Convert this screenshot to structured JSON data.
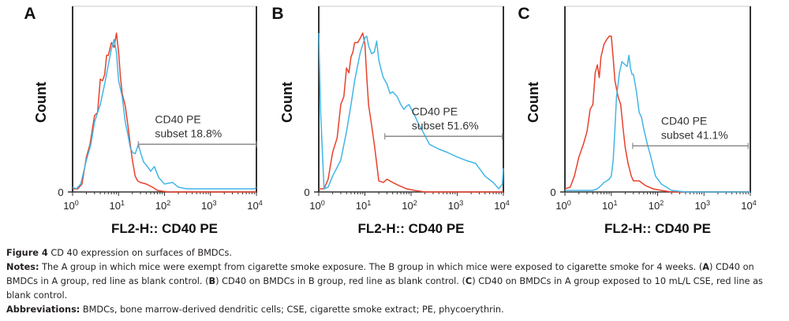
{
  "chart_data": [
    {
      "type": "line",
      "panel": "A",
      "title": "",
      "xlabel": "FL2-H:: CD40 PE",
      "ylabel": "Count",
      "xscale": "log",
      "xlim": [
        1,
        10000
      ],
      "ylim": [
        0,
        1
      ],
      "y_tick_labels": [
        "0"
      ],
      "x_tick_labels": [
        {
          "base": "10",
          "exp": "0"
        },
        {
          "base": "10",
          "exp": "1"
        },
        {
          "base": "10",
          "exp": "2"
        },
        {
          "base": "10",
          "exp": "3"
        },
        {
          "base": "10",
          "exp": "4"
        }
      ],
      "grid": false,
      "gate": {
        "label_line1": "CD40 PE",
        "label_line2": "subset 18.8%",
        "x_start": 27,
        "x_end": 10000,
        "y_level": 0.3
      },
      "series": [
        {
          "name": "blank control",
          "color": "#e8412c",
          "x": [
            1,
            1.3,
            1.6,
            2,
            2.4,
            3,
            3.5,
            4,
            4.5,
            5,
            5.5,
            6,
            7,
            8,
            9,
            10,
            11,
            12,
            14,
            16,
            18,
            20,
            23,
            26,
            30,
            40,
            55,
            70,
            90,
            120,
            200,
            10000
          ],
          "y": [
            0.02,
            0.02,
            0.05,
            0.22,
            0.3,
            0.48,
            0.5,
            0.71,
            0.7,
            0.74,
            0.86,
            0.86,
            0.94,
            0.91,
            1.0,
            0.88,
            0.72,
            0.62,
            0.54,
            0.42,
            0.3,
            0.2,
            0.1,
            0.07,
            0.06,
            0.05,
            0.03,
            0.01,
            0.005,
            0.0,
            0.0,
            0.0
          ]
        },
        {
          "name": "CD40 PE",
          "color": "#41b6e6",
          "x": [
            1,
            1.2,
            1.5,
            2,
            2.5,
            3,
            4,
            5,
            6,
            7,
            8,
            9,
            10,
            12,
            14,
            16,
            18,
            20,
            23,
            25,
            27,
            30,
            35,
            40,
            50,
            60,
            75,
            100,
            150,
            200,
            300,
            500,
            800,
            1000,
            2000,
            5000,
            9000,
            10000
          ],
          "y": [
            0.03,
            0.02,
            0.05,
            0.2,
            0.3,
            0.44,
            0.55,
            0.68,
            0.8,
            0.9,
            0.96,
            0.88,
            0.7,
            0.6,
            0.44,
            0.36,
            0.28,
            0.25,
            0.24,
            0.27,
            0.3,
            0.25,
            0.19,
            0.17,
            0.13,
            0.16,
            0.09,
            0.05,
            0.06,
            0.03,
            0.02,
            0.02,
            0.02,
            0.02,
            0.02,
            0.02,
            0.02,
            0.03
          ]
        }
      ]
    },
    {
      "type": "line",
      "panel": "B",
      "title": "",
      "xlabel": "FL2-H:: CD40 PE",
      "ylabel": "Count",
      "xscale": "log",
      "xlim": [
        1,
        10000
      ],
      "ylim": [
        0,
        1
      ],
      "y_tick_labels": [
        "0"
      ],
      "x_tick_labels": [
        {
          "base": "10",
          "exp": "0"
        },
        {
          "base": "10",
          "exp": "1"
        },
        {
          "base": "10",
          "exp": "2"
        },
        {
          "base": "10",
          "exp": "3"
        },
        {
          "base": "10",
          "exp": "4"
        }
      ],
      "grid": false,
      "gate": {
        "label_line1": "CD40 PE",
        "label_line2": "subset 51.6%",
        "x_start": 27,
        "x_end": 9500,
        "y_level": 0.35
      },
      "series": [
        {
          "name": "blank control",
          "color": "#e8412c",
          "x": [
            1,
            1.3,
            1.6,
            2,
            2.5,
            3,
            3.5,
            4,
            4.5,
            5,
            5.5,
            6,
            7,
            8,
            9,
            10,
            11,
            12,
            14,
            16,
            18,
            20,
            25,
            30,
            40,
            55,
            80,
            120,
            200,
            10000
          ],
          "y": [
            0.02,
            0.02,
            0.08,
            0.25,
            0.34,
            0.55,
            0.6,
            0.78,
            0.75,
            0.85,
            0.88,
            0.94,
            0.94,
            0.97,
            1.0,
            0.93,
            0.72,
            0.55,
            0.42,
            0.3,
            0.18,
            0.07,
            0.06,
            0.08,
            0.06,
            0.04,
            0.02,
            0.01,
            0.0,
            0.0
          ]
        },
        {
          "name": "CD40 PE",
          "color": "#41b6e6",
          "x": [
            1,
            1.1,
            1.3,
            1.6,
            2,
            3,
            4,
            5,
            6,
            7,
            8,
            10,
            11,
            12,
            14,
            16,
            18,
            20,
            22,
            25,
            30,
            35,
            40,
            50,
            60,
            70,
            80,
            90,
            120,
            150,
            180,
            250,
            400,
            600,
            1000,
            1500,
            2500,
            4000,
            6000,
            8000,
            9500,
            10000
          ],
          "y": [
            1.0,
            0.5,
            0.02,
            0.03,
            0.1,
            0.2,
            0.38,
            0.55,
            0.7,
            0.8,
            0.88,
            0.97,
            0.98,
            0.92,
            0.87,
            0.88,
            0.95,
            0.83,
            0.78,
            0.72,
            0.68,
            0.62,
            0.63,
            0.6,
            0.55,
            0.52,
            0.54,
            0.55,
            0.48,
            0.42,
            0.38,
            0.3,
            0.27,
            0.25,
            0.22,
            0.2,
            0.18,
            0.1,
            0.06,
            0.02,
            0.05,
            0.15
          ]
        }
      ]
    },
    {
      "type": "line",
      "panel": "C",
      "title": "",
      "xlabel": "FL2-H:: CD40 PE",
      "ylabel": "Count",
      "xscale": "log",
      "xlim": [
        1,
        10000
      ],
      "ylim": [
        0,
        1
      ],
      "y_tick_labels": [
        "0"
      ],
      "x_tick_labels": [
        {
          "base": "10",
          "exp": "0"
        },
        {
          "base": "10",
          "exp": "1"
        },
        {
          "base": "10",
          "exp": "2"
        },
        {
          "base": "10",
          "exp": "3"
        },
        {
          "base": "10",
          "exp": "4"
        }
      ],
      "grid": false,
      "gate": {
        "label_line1": "CD40 PE",
        "label_line2": "subset 41.1%",
        "x_start": 29,
        "x_end": 9000,
        "y_level": 0.29
      },
      "series": [
        {
          "name": "blank control",
          "color": "#e8412c",
          "x": [
            1,
            1.3,
            1.6,
            2,
            2.5,
            3,
            3.5,
            4,
            4.5,
            5,
            5.5,
            6,
            7,
            8,
            9,
            10,
            11,
            12,
            14,
            16,
            18,
            20,
            23,
            27,
            30,
            40,
            55,
            80,
            120,
            200,
            10000
          ],
          "y": [
            0.02,
            0.03,
            0.1,
            0.22,
            0.3,
            0.38,
            0.52,
            0.55,
            0.75,
            0.8,
            0.72,
            0.85,
            0.93,
            0.96,
            0.98,
            0.98,
            0.84,
            0.7,
            0.6,
            0.55,
            0.4,
            0.28,
            0.18,
            0.1,
            0.07,
            0.07,
            0.04,
            0.02,
            0.01,
            0.0,
            0.0
          ]
        },
        {
          "name": "CD40 PE",
          "color": "#41b6e6",
          "x": [
            1,
            2,
            3,
            4,
            5,
            6,
            7,
            8,
            9,
            10,
            11,
            12,
            13,
            15,
            17,
            20,
            22,
            24,
            26,
            28,
            30,
            35,
            40,
            45,
            50,
            60,
            70,
            90,
            120,
            200,
            400,
            10000
          ],
          "y": [
            0.01,
            0.01,
            0.01,
            0.01,
            0.02,
            0.04,
            0.06,
            0.07,
            0.08,
            0.1,
            0.2,
            0.4,
            0.6,
            0.75,
            0.82,
            0.8,
            0.79,
            0.86,
            0.78,
            0.74,
            0.74,
            0.63,
            0.5,
            0.47,
            0.4,
            0.3,
            0.23,
            0.1,
            0.05,
            0.01,
            0.0,
            0.0
          ]
        }
      ]
    }
  ],
  "caption": {
    "figure_label": "Figure 4",
    "figure_title": " CD 40 expression on surfaces of BMDCs.",
    "notes_label": "Notes:",
    "notes_part1": " The A group in which mice were exempt from cigarette smoke exposure. The B group in which mice were exposed to cigarette smoke for 4 weeks. (",
    "notes_A": "A",
    "notes_part2": ") CD40 on BMDCs in A group, red line as blank control. (",
    "notes_B": "B",
    "notes_part3": ") CD40 on BMDCs in B group, red line as blank control. (",
    "notes_C": "C",
    "notes_part4": ") CD40 on BMDCs in A group exposed to 10 mL/L CSE, red line as blank control.",
    "abbrev_label": "Abbreviations:",
    "abbrev_text": " BMDCs, bone marrow-derived dendritic cells; CSE, cigarette smoke extract; PE, phycoerythrin."
  }
}
